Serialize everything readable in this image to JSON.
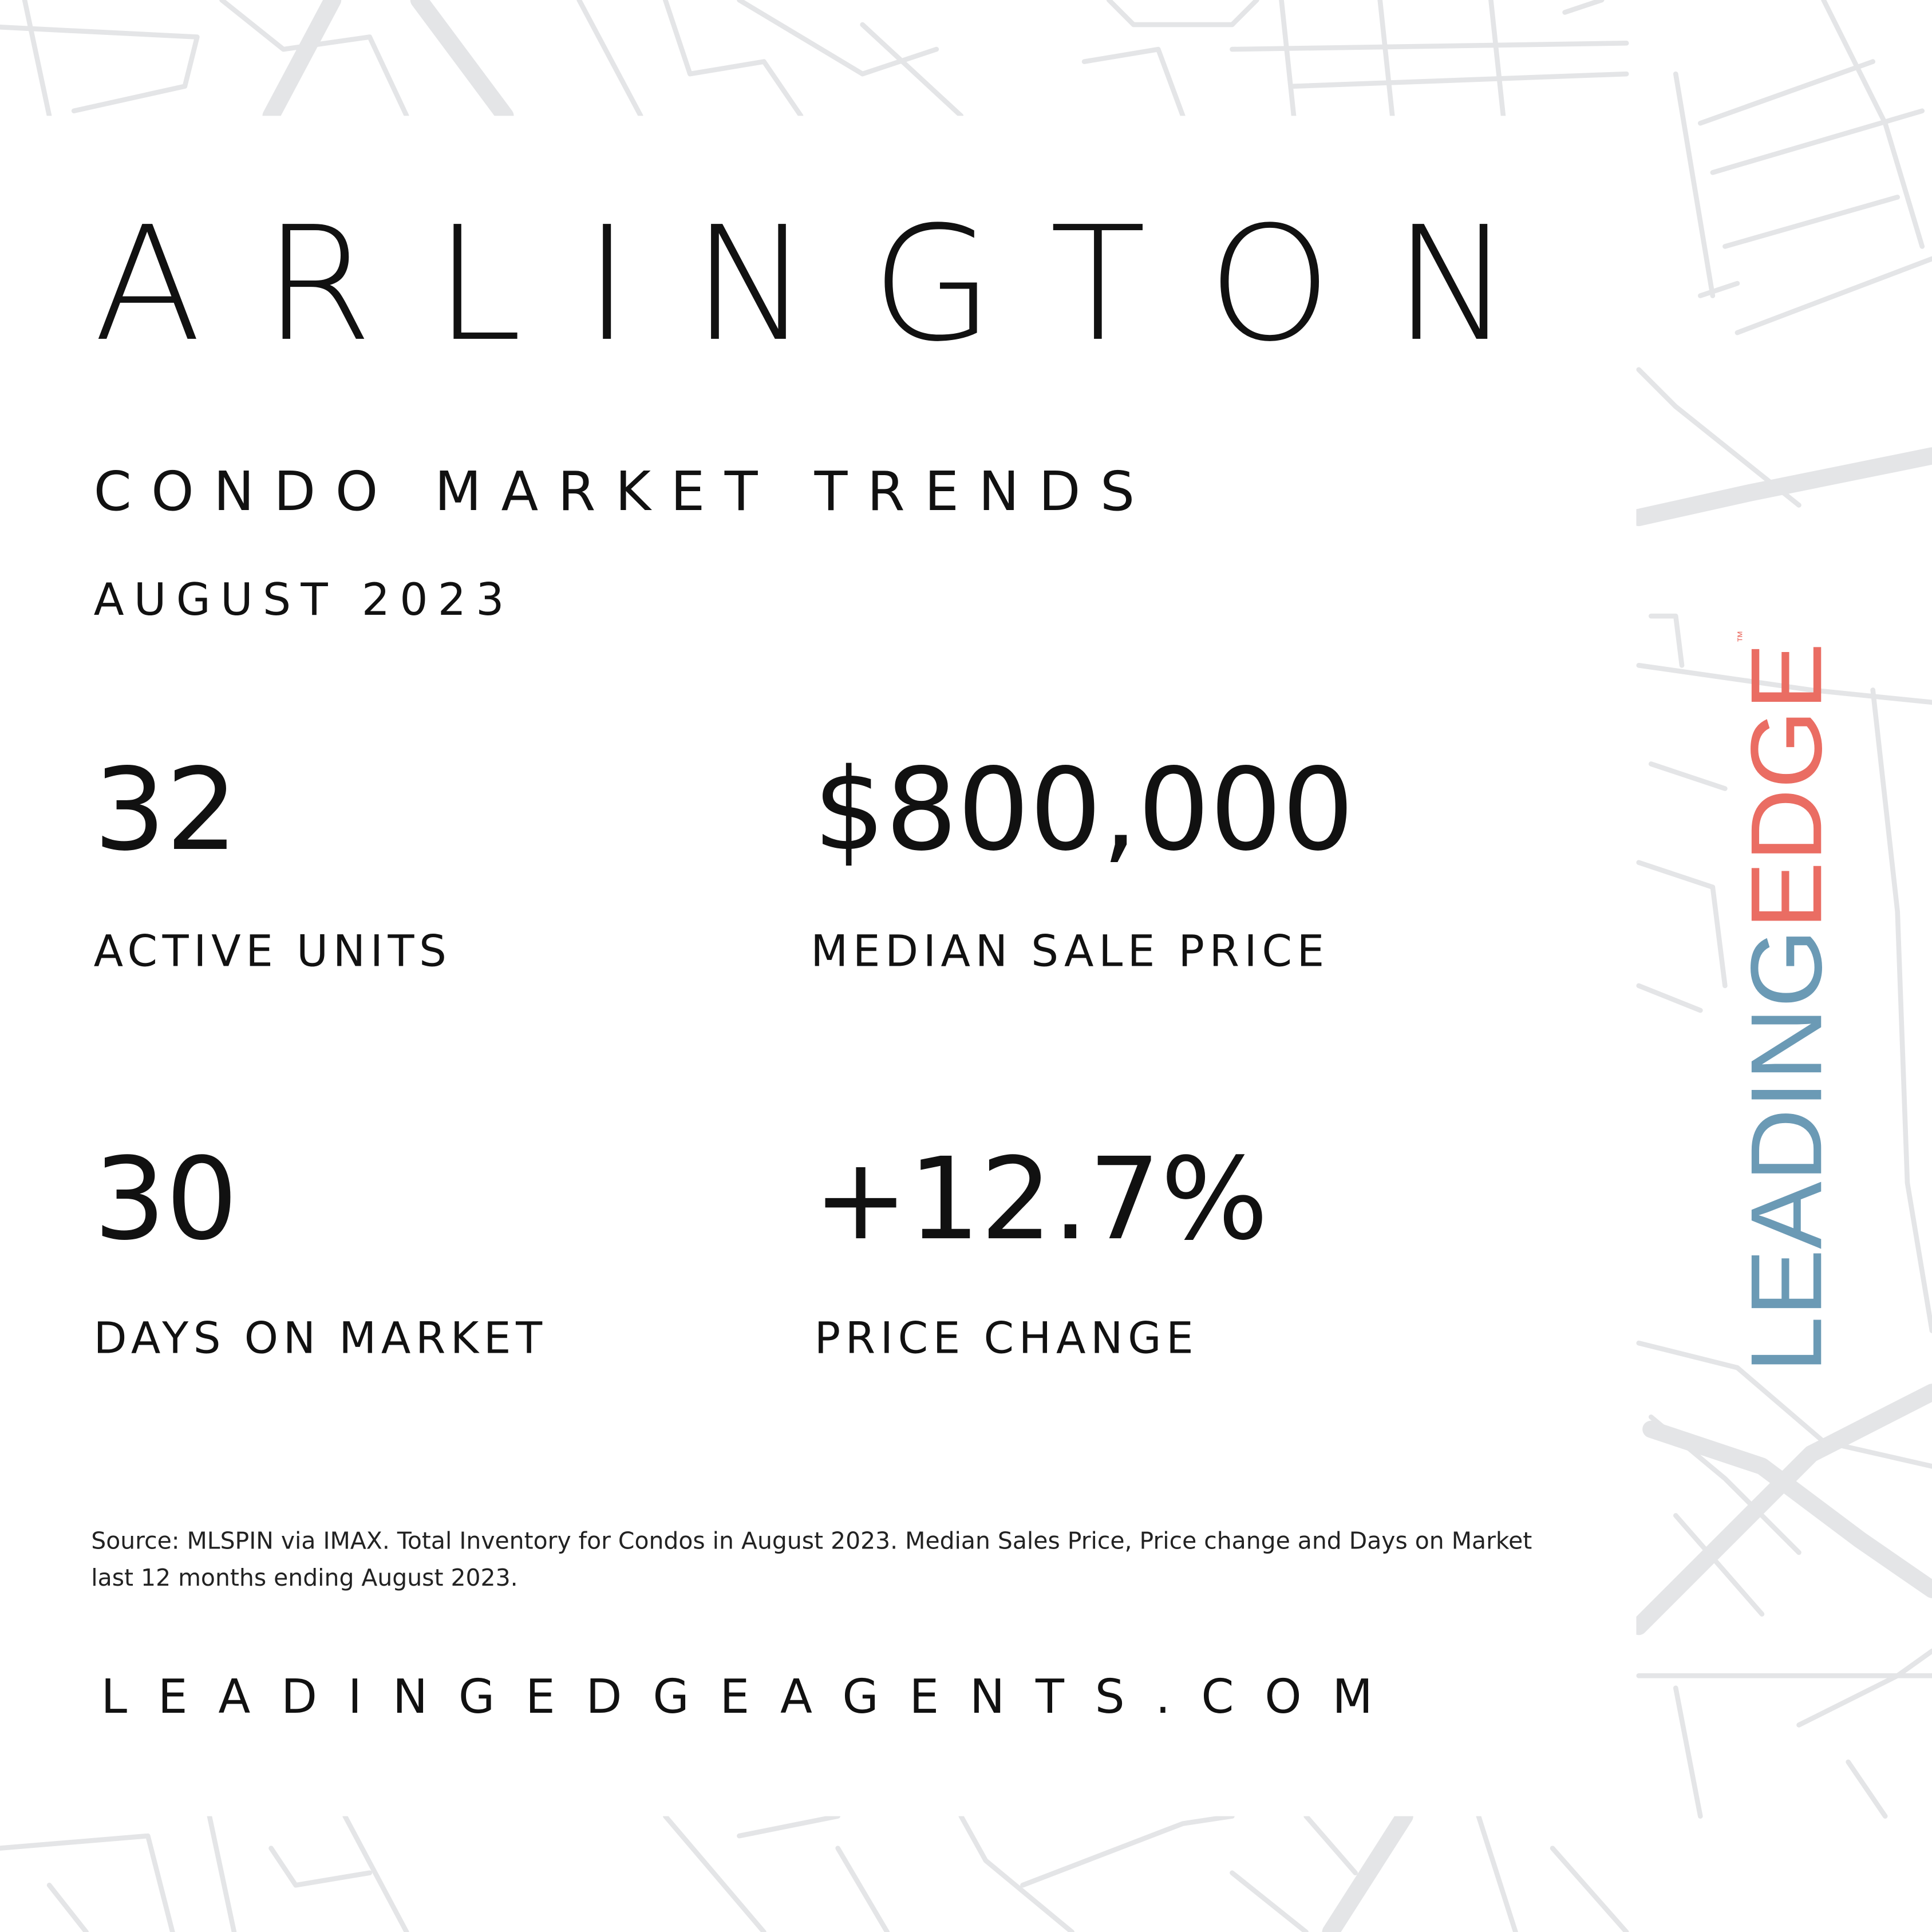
{
  "header": {
    "city": "ARLINGTON",
    "subtitle": "CONDO MARKET TRENDS",
    "date": "AUGUST 2023"
  },
  "stats": {
    "active_units": {
      "value": "32",
      "label": "ACTIVE UNITS"
    },
    "median_price": {
      "value": "$800,000",
      "label": "MEDIAN SALE PRICE"
    },
    "days_on_market": {
      "value": "30",
      "label": "DAYS ON MARKET"
    },
    "price_change": {
      "value": "+12.7%",
      "label": "PRICE CHANGE"
    }
  },
  "footer": {
    "source": "Source: MLSPIN via IMAX. Total Inventory for Condos in August 2023. Median Sales Price, Price change and Days on Market last 12 months ending August 2023.",
    "website": "LEADINGEDGEAGENTS.COM"
  },
  "logo": {
    "part1": "LEADING",
    "part2": "EDGE",
    "tm": "™"
  },
  "colors": {
    "logo_blue": "#6b9ab5",
    "logo_coral": "#ea6d63",
    "map_lines": "#e4e5e7"
  }
}
